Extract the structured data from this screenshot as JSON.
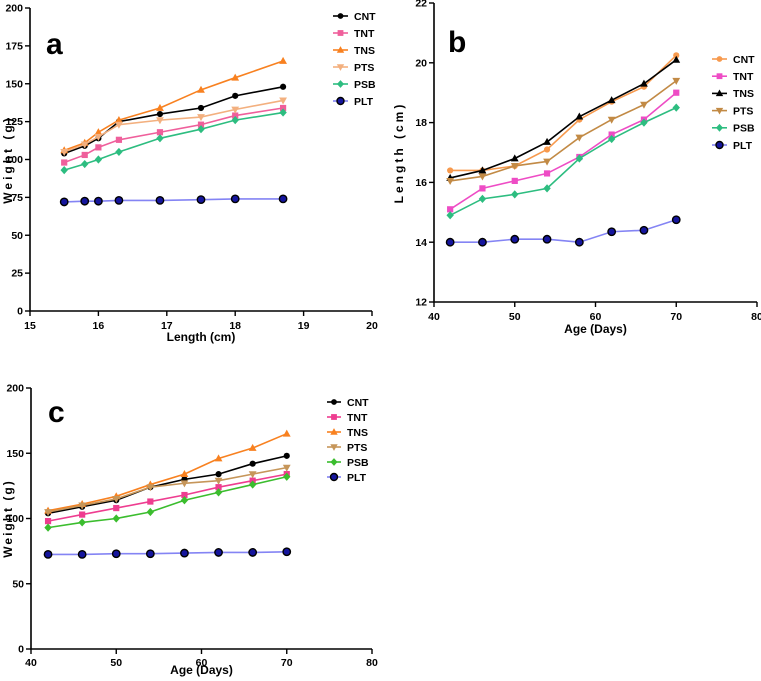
{
  "page": {
    "background": "#ffffff",
    "figure_type": "three-panel line chart figure"
  },
  "chart_data": [
    {
      "type": "line",
      "panel_label": "a",
      "xlabel": "Length (cm)",
      "ylabel": "Weight (g)",
      "xlim": [
        15,
        20
      ],
      "ylim": [
        0,
        200
      ],
      "xticks": [
        15,
        16,
        17,
        18,
        19,
        20
      ],
      "yticks": [
        0,
        25,
        50,
        75,
        100,
        125,
        150,
        175,
        200
      ],
      "grid": false,
      "legend_position": "top-right",
      "x": [
        15.5,
        15.8,
        16.0,
        16.3,
        16.9,
        17.5,
        18.0,
        18.7
      ],
      "series": [
        {
          "name": "CNT",
          "marker": "circle",
          "color": "#000000",
          "values": [
            104,
            109,
            114,
            125,
            130,
            134,
            142,
            148
          ]
        },
        {
          "name": "TNT",
          "marker": "square",
          "color": "#ef5f9b",
          "values": [
            98,
            103,
            108,
            113,
            118,
            123,
            129,
            134
          ]
        },
        {
          "name": "TNS",
          "marker": "triangle-up",
          "color": "#f88120",
          "values": [
            106,
            111,
            118,
            126,
            134,
            146,
            154,
            165
          ]
        },
        {
          "name": "PTS",
          "marker": "triangle-down",
          "color": "#f3b07f",
          "values": [
            105,
            110,
            115,
            123,
            126,
            128,
            133,
            139
          ]
        },
        {
          "name": "PSB",
          "marker": "diamond",
          "color": "#2dbd80",
          "values": [
            93,
            97,
            100,
            105,
            114,
            120,
            126,
            131
          ]
        },
        {
          "name": "PLT",
          "marker": "circle",
          "color": "#15159d",
          "line_color": "#8484f4",
          "marker_edge": "#000000",
          "values": [
            72,
            72.5,
            72.5,
            73,
            73,
            73.5,
            74,
            74
          ]
        }
      ]
    },
    {
      "type": "line",
      "panel_label": "b",
      "xlabel": "Age (Days)",
      "ylabel": "Length (cm)",
      "xlim": [
        40,
        80
      ],
      "ylim": [
        12,
        22
      ],
      "xticks": [
        40,
        50,
        60,
        70,
        80
      ],
      "yticks": [
        12,
        14,
        16,
        18,
        20,
        22
      ],
      "grid": false,
      "legend_position": "right",
      "x": [
        42,
        46,
        50,
        54,
        58,
        62,
        66,
        70
      ],
      "series": [
        {
          "name": "CNT",
          "marker": "circle",
          "color": "#f79a4e",
          "values": [
            16.4,
            16.4,
            16.55,
            17.1,
            18.1,
            18.7,
            19.2,
            20.25
          ]
        },
        {
          "name": "TNT",
          "marker": "square",
          "color": "#ee4cc5",
          "values": [
            15.1,
            15.8,
            16.05,
            16.3,
            16.85,
            17.6,
            18.1,
            19.0
          ]
        },
        {
          "name": "TNS",
          "marker": "triangle-up",
          "color": "#000000",
          "values": [
            16.15,
            16.4,
            16.8,
            17.35,
            18.2,
            18.75,
            19.3,
            20.1
          ]
        },
        {
          "name": "PTS",
          "marker": "triangle-down",
          "color": "#c28a45",
          "values": [
            16.05,
            16.2,
            16.55,
            16.7,
            17.5,
            18.1,
            18.6,
            19.4
          ]
        },
        {
          "name": "PSB",
          "marker": "diamond",
          "color": "#2dbd80",
          "values": [
            14.9,
            15.45,
            15.6,
            15.8,
            16.8,
            17.45,
            18.0,
            18.5
          ]
        },
        {
          "name": "PLT",
          "marker": "circle",
          "color": "#15159d",
          "line_color": "#8484f4",
          "marker_edge": "#000000",
          "values": [
            14.0,
            14.0,
            14.1,
            14.1,
            14.0,
            14.35,
            14.4,
            14.75
          ]
        }
      ]
    },
    {
      "type": "line",
      "panel_label": "c",
      "xlabel": "Age (Days)",
      "ylabel": "Weight (g)",
      "xlim": [
        40,
        80
      ],
      "ylim": [
        0,
        200
      ],
      "xticks": [
        40,
        50,
        60,
        70,
        80
      ],
      "yticks": [
        0,
        50,
        100,
        150,
        200
      ],
      "grid": false,
      "legend_position": "top-right",
      "x": [
        42,
        46,
        50,
        54,
        58,
        62,
        66,
        70
      ],
      "series": [
        {
          "name": "CNT",
          "marker": "circle",
          "color": "#000000",
          "values": [
            104,
            109,
            114,
            124,
            130,
            134,
            142,
            148
          ]
        },
        {
          "name": "TNT",
          "marker": "square",
          "color": "#ee3d90",
          "values": [
            98,
            103,
            108,
            113,
            118,
            124,
            129,
            134
          ]
        },
        {
          "name": "TNS",
          "marker": "triangle-up",
          "color": "#f88120",
          "values": [
            106,
            111,
            117,
            126,
            134,
            146,
            154,
            165
          ]
        },
        {
          "name": "PTS",
          "marker": "triangle-down",
          "color": "#c6965a",
          "values": [
            105,
            110,
            115,
            124,
            127,
            129,
            134,
            139
          ]
        },
        {
          "name": "PSB",
          "marker": "diamond",
          "color": "#3bbd2e",
          "values": [
            93,
            97,
            100,
            105,
            114,
            120,
            126,
            132
          ]
        },
        {
          "name": "PLT",
          "marker": "circle",
          "color": "#15159d",
          "line_color": "#8484f4",
          "marker_edge": "#000000",
          "values": [
            72.5,
            72.5,
            73,
            73,
            73.5,
            74,
            74,
            74.5
          ]
        }
      ]
    }
  ]
}
